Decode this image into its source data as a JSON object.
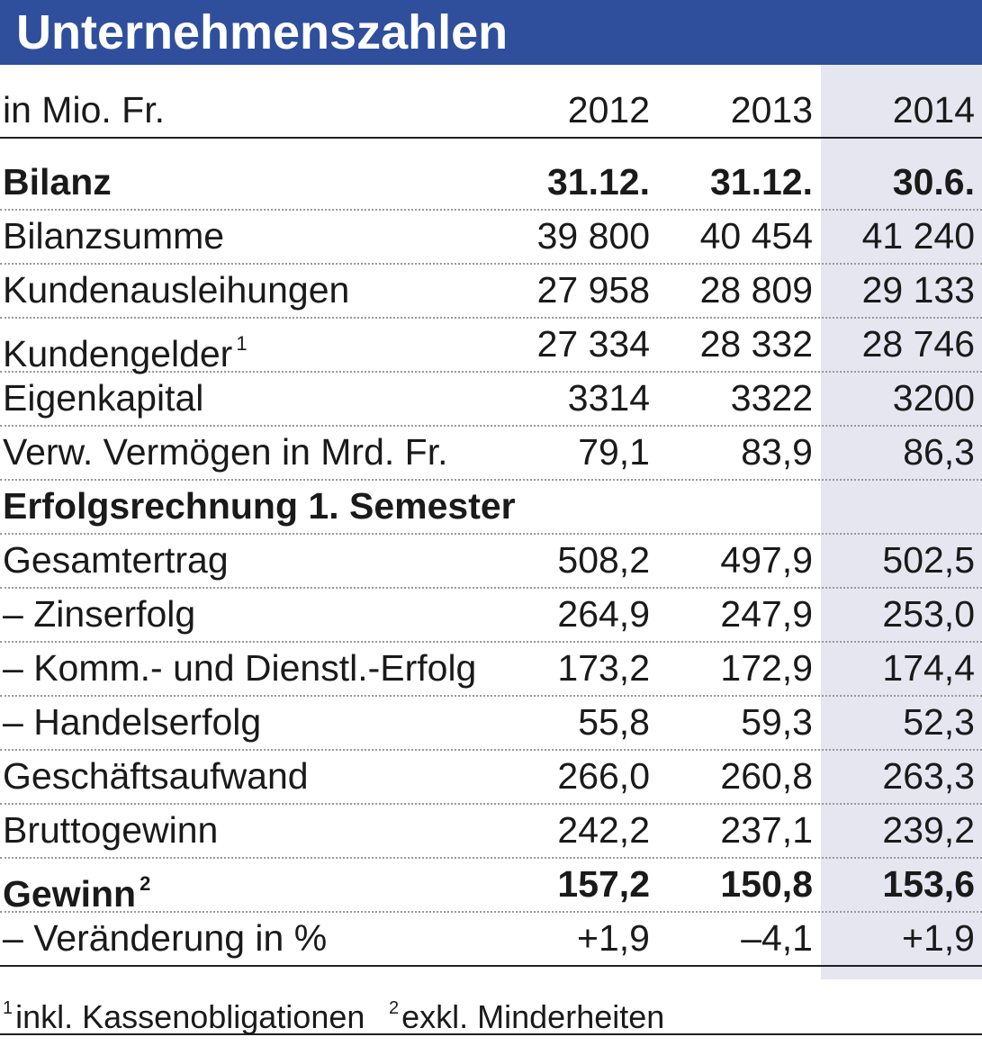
{
  "title": "Unternehmenszahlen",
  "header": {
    "unit": "in Mio. Fr.",
    "years": [
      "2012",
      "2013",
      "2014"
    ]
  },
  "rows": [
    {
      "label": "Bilanz",
      "values": [
        "31.12.",
        "31.12.",
        "30.6."
      ],
      "bold": true
    },
    {
      "label": "Bilanzsumme",
      "values": [
        "39 800",
        "40 454",
        "41 240"
      ]
    },
    {
      "label": "Kundenausleihungen",
      "values": [
        "27 958",
        "28 809",
        "29 133"
      ]
    },
    {
      "label": "Kundengelder",
      "sup": "1",
      "values": [
        "27 334",
        "28 332",
        "28 746"
      ]
    },
    {
      "label": "Eigenkapital",
      "values": [
        "3314",
        "3322",
        "3200"
      ]
    },
    {
      "label": "Verw. Vermögen in Mrd. Fr.",
      "values": [
        "79,1",
        "83,9",
        "86,3"
      ]
    },
    {
      "label": "Erfolgsrechnung 1. Semester",
      "values": [
        "",
        "",
        ""
      ],
      "bold": true
    },
    {
      "label": "Gesamtertrag",
      "values": [
        "508,2",
        "497,9",
        "502,5"
      ]
    },
    {
      "label": "– Zinserfolg",
      "values": [
        "264,9",
        "247,9",
        "253,0"
      ]
    },
    {
      "label": "– Komm.- und Dienstl.-Erfolg",
      "values": [
        "173,2",
        "172,9",
        "174,4"
      ]
    },
    {
      "label": "– Handelserfolg",
      "values": [
        "55,8",
        "59,3",
        "52,3"
      ]
    },
    {
      "label": "Geschäftsaufwand",
      "values": [
        "266,0",
        "260,8",
        "263,3"
      ]
    },
    {
      "label": "Bruttogewinn",
      "values": [
        "242,2",
        "237,1",
        "239,2"
      ]
    },
    {
      "label": "Gewinn",
      "sup": "2",
      "values": [
        "157,2",
        "150,8",
        "153,6"
      ],
      "bold": true
    },
    {
      "label": "– Veränderung in %",
      "values": [
        "+1,9",
        "–4,1",
        "+1,9"
      ]
    }
  ],
  "footnotes": [
    {
      "mark": "1",
      "text": "inkl. Kassenobligationen"
    },
    {
      "mark": "2",
      "text": "exkl. Minderheiten"
    }
  ]
}
